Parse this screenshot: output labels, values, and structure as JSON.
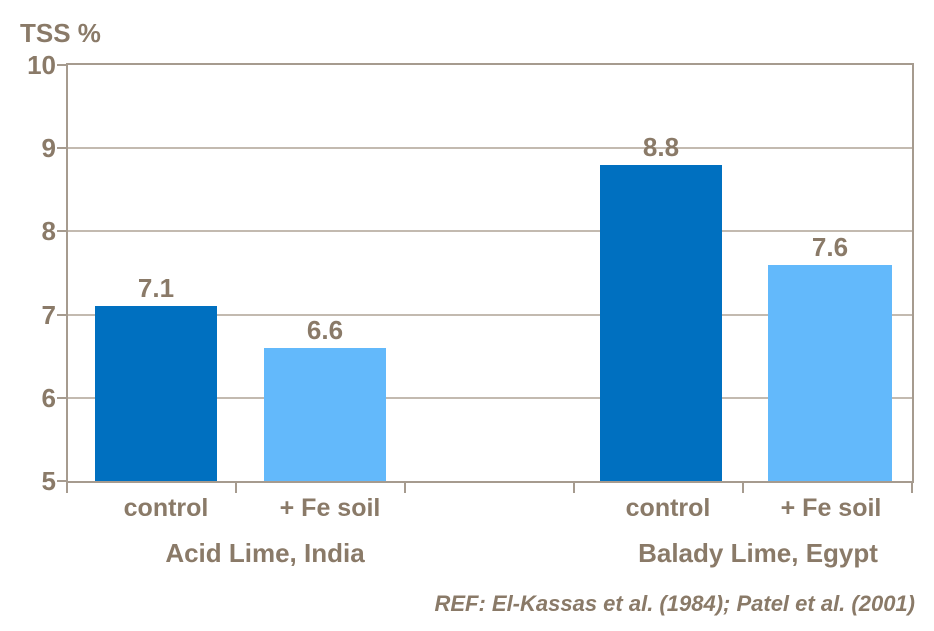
{
  "title": "TSS %",
  "colors": {
    "bar_dark": "#0070C0",
    "bar_light": "#63B9FB",
    "text": "#8A7A68",
    "gridline": "#C3BAB0",
    "axis": "#A69B8F",
    "background": "#FFFFFF"
  },
  "y_axis": {
    "tick_labels": [
      "10",
      "9",
      "8",
      "7",
      "6",
      "5"
    ]
  },
  "chart_data": {
    "type": "bar",
    "title": "TSS %",
    "ylabel": "TSS %",
    "xlabel": "",
    "ylim": [
      5,
      10
    ],
    "yticks": [
      5,
      6,
      7,
      8,
      9,
      10
    ],
    "grid": true,
    "legend": false,
    "categories": [
      "control",
      "+ Fe soil",
      "control",
      "+ Fe soil"
    ],
    "groups": [
      {
        "label": "Acid Lime, India",
        "bars": [
          {
            "label": "control",
            "value": 7.1,
            "value_label": "7.1",
            "color": "#0070C0"
          },
          {
            "label": "+ Fe soil",
            "value": 6.6,
            "value_label": "6.6",
            "color": "#63B9FB"
          }
        ]
      },
      {
        "label": "Balady Lime, Egypt",
        "bars": [
          {
            "label": "control",
            "value": 8.8,
            "value_label": "8.8",
            "color": "#0070C0"
          },
          {
            "label": "+ Fe soil",
            "value": 7.6,
            "value_label": "7.6",
            "color": "#63B9FB"
          }
        ]
      }
    ],
    "footnote": "REF: El-Kassas et al. (1984); Patel et al. (2001)"
  }
}
